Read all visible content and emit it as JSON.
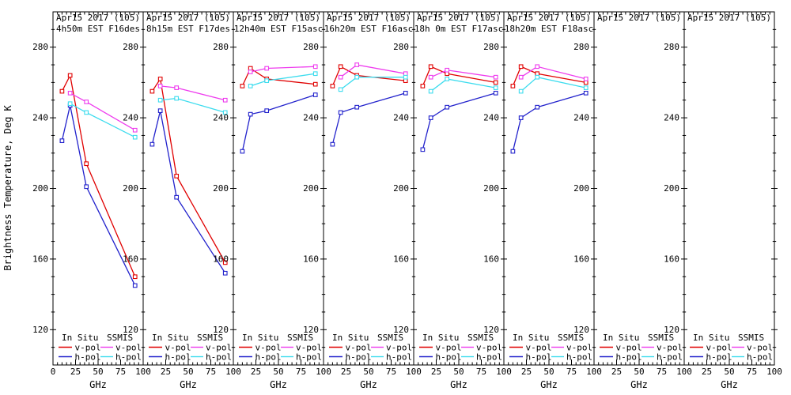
{
  "chart_data": {
    "type": "line",
    "ylabel": "Brightness Temperature, Deg K",
    "xlabel": "GHz",
    "xlim": [
      0,
      100
    ],
    "ylim": [
      100,
      300
    ],
    "xticks": [
      0,
      25,
      50,
      75,
      100
    ],
    "yticks": [
      120,
      160,
      200,
      240,
      280
    ],
    "x_minor_step": 5,
    "y_minor_step": 10,
    "grid": false,
    "insitu_x_ghz": [
      10,
      19,
      37,
      91
    ],
    "ssmis_x_ghz": [
      19,
      37,
      91
    ],
    "legend": {
      "groups": [
        {
          "header": "In Situ",
          "entries": [
            {
              "label": "v-pol",
              "series": "insitu_v",
              "color": "#e00000"
            },
            {
              "label": "h-pol",
              "series": "insitu_h",
              "color": "#2222cc"
            }
          ]
        },
        {
          "header": "SSMIS",
          "entries": [
            {
              "label": "v-pol",
              "series": "ssmis_v",
              "color": "#ee3cee"
            },
            {
              "label": "h-pol",
              "series": "ssmis_h",
              "color": "#3cdcee"
            }
          ]
        }
      ]
    },
    "panels": [
      {
        "title": "Apr15 2017 (105)",
        "subtitle": "4h50m EST F16des",
        "series": {
          "insitu_v": [
            255,
            264,
            214,
            150
          ],
          "insitu_h": [
            227,
            247,
            201,
            145
          ],
          "ssmis_v": [
            254,
            249,
            233
          ],
          "ssmis_h": [
            248,
            243,
            229
          ]
        }
      },
      {
        "title": "Apr15 2017 (105)",
        "subtitle": "8h15m EST F17des",
        "series": {
          "insitu_v": [
            255,
            262,
            207,
            158
          ],
          "insitu_h": [
            225,
            244,
            195,
            152
          ],
          "ssmis_v": [
            258,
            257,
            250
          ],
          "ssmis_h": [
            250,
            251,
            243
          ]
        }
      },
      {
        "title": "Apr15 2017 (105)",
        "subtitle": "12h40m EST F15asc",
        "series": {
          "insitu_v": [
            258,
            268,
            262,
            259
          ],
          "insitu_h": [
            221,
            242,
            244,
            253
          ],
          "ssmis_v": [
            266,
            268,
            269
          ],
          "ssmis_h": [
            258,
            261,
            265
          ]
        }
      },
      {
        "title": "Apr15 2017 (105)",
        "subtitle": "16h20m EST F16asc",
        "series": {
          "insitu_v": [
            258,
            269,
            264,
            261
          ],
          "insitu_h": [
            225,
            243,
            246,
            254
          ],
          "ssmis_v": [
            263,
            270,
            265
          ],
          "ssmis_h": [
            256,
            263,
            263
          ]
        }
      },
      {
        "title": "Apr15 2017 (105)",
        "subtitle": "18h 0m EST F17asc",
        "series": {
          "insitu_v": [
            258,
            269,
            265,
            260
          ],
          "insitu_h": [
            222,
            240,
            246,
            254
          ],
          "ssmis_v": [
            263,
            267,
            263
          ],
          "ssmis_h": [
            255,
            262,
            257
          ]
        }
      },
      {
        "title": "Apr15 2017 (105)",
        "subtitle": "18h20m EST F18asc",
        "series": {
          "insitu_v": [
            258,
            269,
            265,
            260
          ],
          "insitu_h": [
            221,
            240,
            246,
            254
          ],
          "ssmis_v": [
            263,
            269,
            262
          ],
          "ssmis_h": [
            255,
            263,
            257
          ]
        }
      },
      {
        "title": "Apr15 2017 (105)",
        "subtitle": "",
        "series": {}
      },
      {
        "title": "Apr15 2017 (105)",
        "subtitle": "",
        "series": {}
      }
    ]
  }
}
